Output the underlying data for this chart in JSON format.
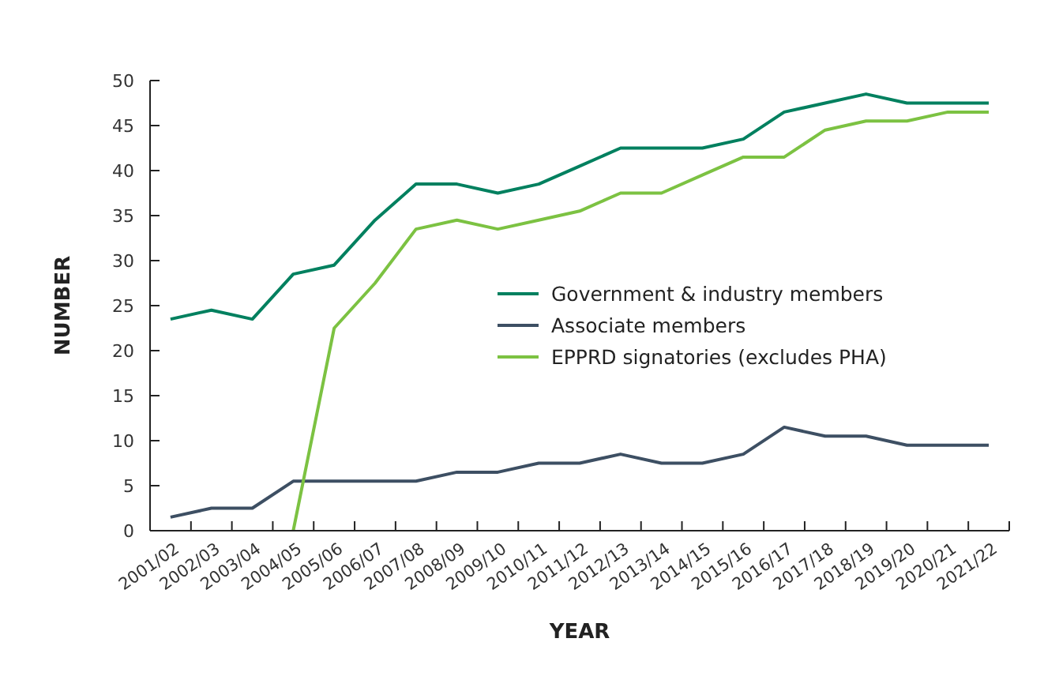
{
  "chart_data": {
    "type": "line",
    "xlabel": "YEAR",
    "ylabel": "NUMBER",
    "categories": [
      "2001/02",
      "2002/03",
      "2003/04",
      "2004/05",
      "2005/06",
      "2006/07",
      "2007/08",
      "2008/09",
      "2009/10",
      "2010/11",
      "2011/12",
      "2012/13",
      "2013/14",
      "2014/15",
      "2015/16",
      "2016/17",
      "2017/18",
      "2018/19",
      "2019/20",
      "2020/21",
      "2021/22"
    ],
    "series": [
      {
        "name": "Government & industry members",
        "color": "#00805f",
        "values": [
          23.5,
          24.5,
          23.5,
          28.5,
          29.5,
          34.5,
          38.5,
          38.5,
          37.5,
          38.5,
          40.5,
          42.5,
          42.5,
          42.5,
          43.5,
          46.5,
          47.5,
          48.5,
          47.5,
          47.5,
          47.5
        ]
      },
      {
        "name": "Associate members",
        "color": "#3d4f63",
        "values": [
          1.5,
          2.5,
          2.5,
          5.5,
          5.5,
          5.5,
          5.5,
          6.5,
          6.5,
          7.5,
          7.5,
          8.5,
          7.5,
          7.5,
          8.5,
          11.5,
          10.5,
          10.5,
          9.5,
          9.5,
          9.5
        ]
      },
      {
        "name": "EPPRD signatories (excludes PHA)",
        "color": "#7cc242",
        "values": [
          null,
          null,
          null,
          0,
          22.5,
          27.5,
          33.5,
          34.5,
          33.5,
          34.5,
          35.5,
          37.5,
          37.5,
          39.5,
          41.5,
          41.5,
          44.5,
          45.5,
          45.5,
          46.5,
          46.5
        ]
      }
    ],
    "ylim": [
      0,
      50
    ],
    "yticks": [
      0,
      5,
      10,
      15,
      20,
      25,
      30,
      35,
      40,
      45,
      50
    ],
    "grid": false,
    "legend": "right",
    "marker": "none",
    "line_style": "solid"
  }
}
